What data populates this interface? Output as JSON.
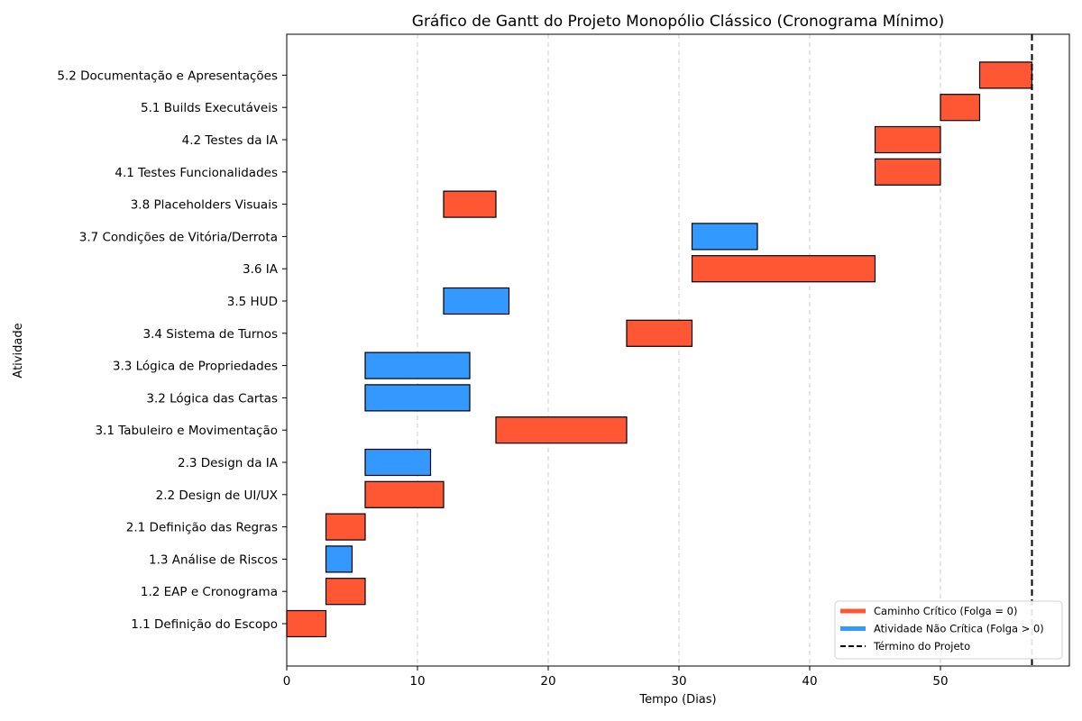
{
  "chart_data": {
    "type": "gantt",
    "title": "Gráfico de Gantt do Projeto Monopólio Clássico (Cronograma Mínimo)",
    "xlabel": "Tempo (Dias)",
    "ylabel": "Atividade",
    "xlim": [
      0,
      60
    ],
    "xticks": [
      0,
      10,
      20,
      30,
      40,
      50
    ],
    "grid": "vertical dashed",
    "legend_position": "bottom-right",
    "colors": {
      "critical": "#ff5733",
      "non_critical": "#3399ff",
      "end_line": "#000000",
      "grid": "#cccccc"
    },
    "legend": [
      {
        "label": "Caminho Crítico (Folga = 0)",
        "kind": "critical"
      },
      {
        "label": "Atividade Não Crítica (Folga > 0)",
        "kind": "non_critical"
      },
      {
        "label": "Término do Projeto",
        "kind": "end_line"
      }
    ],
    "project_end": 57,
    "tasks": [
      {
        "label": "1.1 Definição do Escopo",
        "start": 0,
        "end": 3,
        "critical": true
      },
      {
        "label": "1.2 EAP e Cronograma",
        "start": 3,
        "end": 6,
        "critical": true
      },
      {
        "label": "1.3 Análise de Riscos",
        "start": 3,
        "end": 5,
        "critical": false
      },
      {
        "label": "2.1 Definição das Regras",
        "start": 3,
        "end": 6,
        "critical": true
      },
      {
        "label": "2.2 Design de UI/UX",
        "start": 6,
        "end": 12,
        "critical": true
      },
      {
        "label": "2.3 Design da IA",
        "start": 6,
        "end": 11,
        "critical": false
      },
      {
        "label": "3.1 Tabuleiro e Movimentação",
        "start": 16,
        "end": 26,
        "critical": true
      },
      {
        "label": "3.2 Lógica das Cartas",
        "start": 6,
        "end": 14,
        "critical": false
      },
      {
        "label": "3.3 Lógica de Propriedades",
        "start": 6,
        "end": 14,
        "critical": false
      },
      {
        "label": "3.4 Sistema de Turnos",
        "start": 26,
        "end": 31,
        "critical": true
      },
      {
        "label": "3.5 HUD",
        "start": 12,
        "end": 17,
        "critical": false
      },
      {
        "label": "3.6 IA",
        "start": 31,
        "end": 45,
        "critical": true
      },
      {
        "label": "3.7 Condições de Vitória/Derrota",
        "start": 31,
        "end": 36,
        "critical": false
      },
      {
        "label": "3.8 Placeholders Visuais",
        "start": 12,
        "end": 16,
        "critical": true
      },
      {
        "label": "4.1 Testes Funcionalidades",
        "start": 45,
        "end": 50,
        "critical": true
      },
      {
        "label": "4.2 Testes da IA",
        "start": 45,
        "end": 50,
        "critical": true
      },
      {
        "label": "5.1 Builds Executáveis",
        "start": 50,
        "end": 53,
        "critical": true
      },
      {
        "label": "5.2 Documentação e Apresentações",
        "start": 53,
        "end": 57,
        "critical": true
      }
    ]
  }
}
